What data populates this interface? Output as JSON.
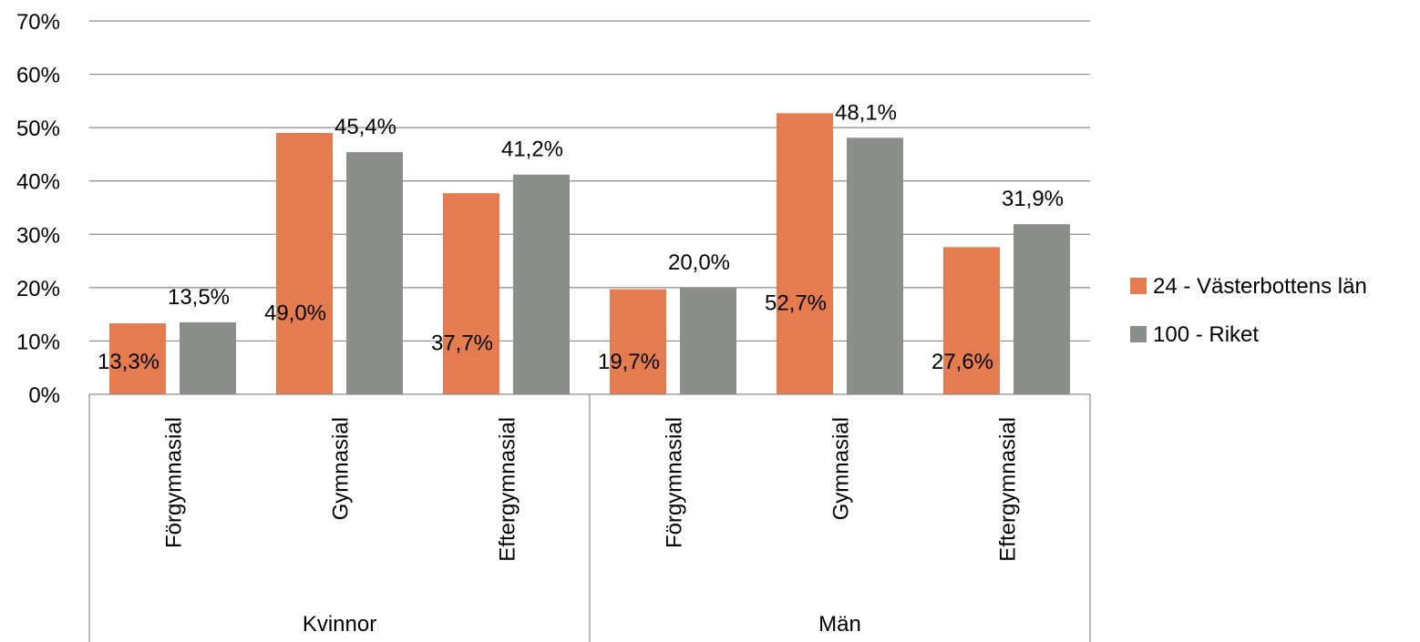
{
  "chart_data": {
    "type": "bar",
    "groups": [
      {
        "label": "Kvinnor",
        "categories": [
          "Förgymnasial",
          "Gymnasial",
          "Eftergymnasial"
        ]
      },
      {
        "label": "Män",
        "categories": [
          "Förgymnasial",
          "Gymnasial",
          "Eftergymnasial"
        ]
      }
    ],
    "series": [
      {
        "name": "24 - Västerbottens län",
        "color": "#E57C4F",
        "values": [
          13.3,
          49.0,
          37.7,
          19.7,
          52.7,
          27.6
        ],
        "labels": [
          "13,3%",
          "49,0%",
          "37,7%",
          "19,7%",
          "52,7%",
          "27,6%"
        ]
      },
      {
        "name": "100 - Riket",
        "color": "#8A8F8C",
        "values": [
          13.5,
          45.4,
          41.2,
          20.0,
          48.1,
          31.9
        ],
        "labels": [
          "13,5%",
          "45,4%",
          "41,2%",
          "20,0%",
          "48,1%",
          "31,9%"
        ]
      }
    ],
    "y_ticks": [
      "0%",
      "10%",
      "20%",
      "30%",
      "40%",
      "50%",
      "60%",
      "70%"
    ],
    "ylim": [
      0,
      70
    ],
    "grid": true,
    "legend_position": "right",
    "title": "",
    "xlabel": "",
    "ylabel": ""
  }
}
